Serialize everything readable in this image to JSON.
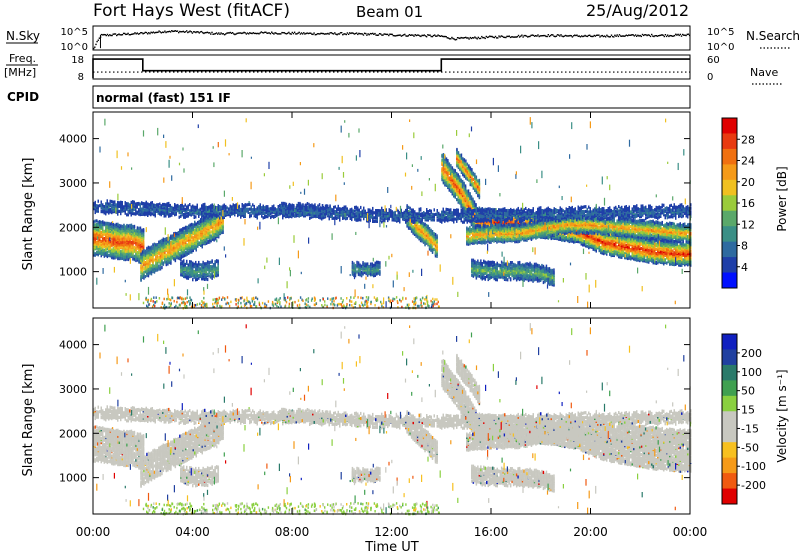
{
  "header": {
    "station": "Fort Hays West (fitACF)",
    "beam": "Beam 01",
    "date": "25/Aug/2012"
  },
  "left_labels": {
    "nsky": "N.Sky",
    "freq_line1": "Freq.",
    "freq_line2": "[MHz]",
    "cpid": "CPID"
  },
  "right_labels": {
    "nsearch": "N.Search",
    "nave": "Nave"
  },
  "cpid_text": "normal (fast) 151 IF",
  "colors": {
    "power": [
      "#0010ff",
      "#1f3fa8",
      "#2e6aa0",
      "#3a8f86",
      "#5aa86a",
      "#9acb3a",
      "#f0c020",
      "#f59a18",
      "#f07010",
      "#e83a10",
      "#e00000"
    ],
    "velocity": [
      "#e00000",
      "#f05a10",
      "#f59a18",
      "#f7c020",
      "#c8c8c0",
      "#c8c8c0",
      "#8ad040",
      "#40a050",
      "#2a7a6a",
      "#2040a0",
      "#1020c0"
    ],
    "grey_scatter": "#c8c8c0"
  },
  "chart_data": [
    {
      "type": "line",
      "name": "nsky-nsearch",
      "ylabel": "N.Sky",
      "yticks": [
        "10^5",
        "10^0"
      ],
      "right_yticks": [
        "10^5",
        "10^0"
      ],
      "x_hours": [
        0,
        0.3,
        1,
        2,
        3,
        4,
        5,
        6,
        7,
        8,
        9,
        10,
        11,
        12,
        13,
        14,
        14.5,
        15,
        16,
        17,
        18,
        19,
        20,
        21,
        22,
        23,
        24
      ],
      "noise_log": [
        0.2,
        3.4,
        3.6,
        3.9,
        4.4,
        4.2,
        3.8,
        3.9,
        4.0,
        3.9,
        3.8,
        3.8,
        3.7,
        3.5,
        3.4,
        3.2,
        2.6,
        2.7,
        3.0,
        3.2,
        3.4,
        3.3,
        3.2,
        3.3,
        3.4,
        3.4,
        3.5
      ]
    },
    {
      "type": "line",
      "name": "frequency-nave",
      "ylabel": "Freq. [MHz]",
      "yticks": [
        18,
        8
      ],
      "right_yticks": [
        60,
        0
      ],
      "right_label": "Nave",
      "freq_x": [
        0,
        0,
        2,
        2,
        14,
        14,
        24
      ],
      "freq_mhz": [
        8,
        17,
        17,
        11.5,
        11.5,
        17,
        17
      ],
      "nave_x": [
        0,
        24
      ],
      "nave": [
        17,
        17
      ]
    },
    {
      "type": "heatmap",
      "name": "power",
      "ylabel": "Slant Range [km]",
      "yticks": [
        1000,
        2000,
        3000,
        4000
      ],
      "ylim": [
        180,
        4600
      ],
      "xlim": [
        0,
        24
      ],
      "colorbar_label": "Power [dB]",
      "colorbar_ticks": [
        4,
        8,
        12,
        16,
        20,
        24,
        28
      ],
      "bands": [
        {
          "x": [
            0,
            0.4,
            0.8,
            1.2,
            1.6,
            2.0
          ],
          "r": [
            1800,
            1780,
            1730,
            1700,
            1700,
            1600
          ],
          "width": 380,
          "peak": 27
        },
        {
          "x": [
            1.9,
            2.3,
            2.8,
            3.3,
            3.8,
            4.3,
            4.8,
            5.2
          ],
          "r": [
            1150,
            1300,
            1450,
            1600,
            1750,
            1900,
            2050,
            2200
          ],
          "width": 300,
          "peak": 22
        },
        {
          "x": [
            3.5,
            4.0,
            4.5,
            5.0
          ],
          "r": [
            1100,
            1050,
            1050,
            1100
          ],
          "width": 180,
          "peak": 11
        },
        {
          "x": [
            7.5,
            8.5,
            9.5
          ],
          "r": [
            2450,
            2450,
            2400
          ],
          "width": 120,
          "peak": 7
        },
        {
          "x": [
            10.4,
            11.0,
            11.5
          ],
          "r": [
            1100,
            1080,
            1100
          ],
          "width": 140,
          "peak": 10
        },
        {
          "x": [
            12.6,
            13.0,
            13.4,
            13.8
          ],
          "r": [
            2300,
            2050,
            1850,
            1600
          ],
          "width": 250,
          "peak": 23
        },
        {
          "x": [
            14.0,
            14.4,
            14.8,
            15.2,
            15.6
          ],
          "r": [
            3400,
            3100,
            2800,
            2400,
            2000
          ],
          "width": 300,
          "peak": 26
        },
        {
          "x": [
            14.6,
            15.0,
            15.5
          ],
          "r": [
            3600,
            3300,
            2900
          ],
          "width": 200,
          "peak": 24
        },
        {
          "x": [
            15.5,
            16.5,
            17.5,
            18.5,
            19.5,
            20.5,
            21.5,
            22.5,
            23.5,
            24
          ],
          "r": [
            2200,
            2150,
            2100,
            2050,
            1950,
            1700,
            1600,
            1500,
            1450,
            1450
          ],
          "width": 260,
          "peak": 28
        },
        {
          "x": [
            15.0,
            16.0,
            17.0,
            18.0,
            19.0,
            20.0,
            21.0,
            22.0,
            23.0,
            24
          ],
          "r": [
            1850,
            1900,
            1900,
            2000,
            2100,
            2100,
            2050,
            2000,
            1950,
            1900
          ],
          "width": 200,
          "peak": 22
        },
        {
          "x": [
            15.2,
            16.0,
            17.0,
            18.0,
            18.5
          ],
          "r": [
            1100,
            1050,
            1050,
            1000,
            900
          ],
          "width": 180,
          "peak": 13
        },
        {
          "x": [
            0,
            4,
            8,
            12,
            16,
            20,
            24
          ],
          "r": [
            2500,
            2400,
            2400,
            2300,
            2300,
            2350,
            2400
          ],
          "width": 150,
          "peak": 6
        }
      ]
    },
    {
      "type": "heatmap",
      "name": "velocity",
      "ylabel": "Slant Range [km]",
      "yticks": [
        1000,
        2000,
        3000,
        4000
      ],
      "ylim": [
        180,
        4600
      ],
      "xlim": [
        0,
        24
      ],
      "xlabel": "Time UT",
      "xticks": [
        "00:00",
        "04:00",
        "08:00",
        "12:00",
        "16:00",
        "20:00",
        "00:00"
      ],
      "colorbar_label": "Velocity [m s⁻¹]",
      "colorbar_ticks": [
        200,
        100,
        50,
        15,
        -15,
        -50,
        -100,
        -200
      ]
    }
  ]
}
